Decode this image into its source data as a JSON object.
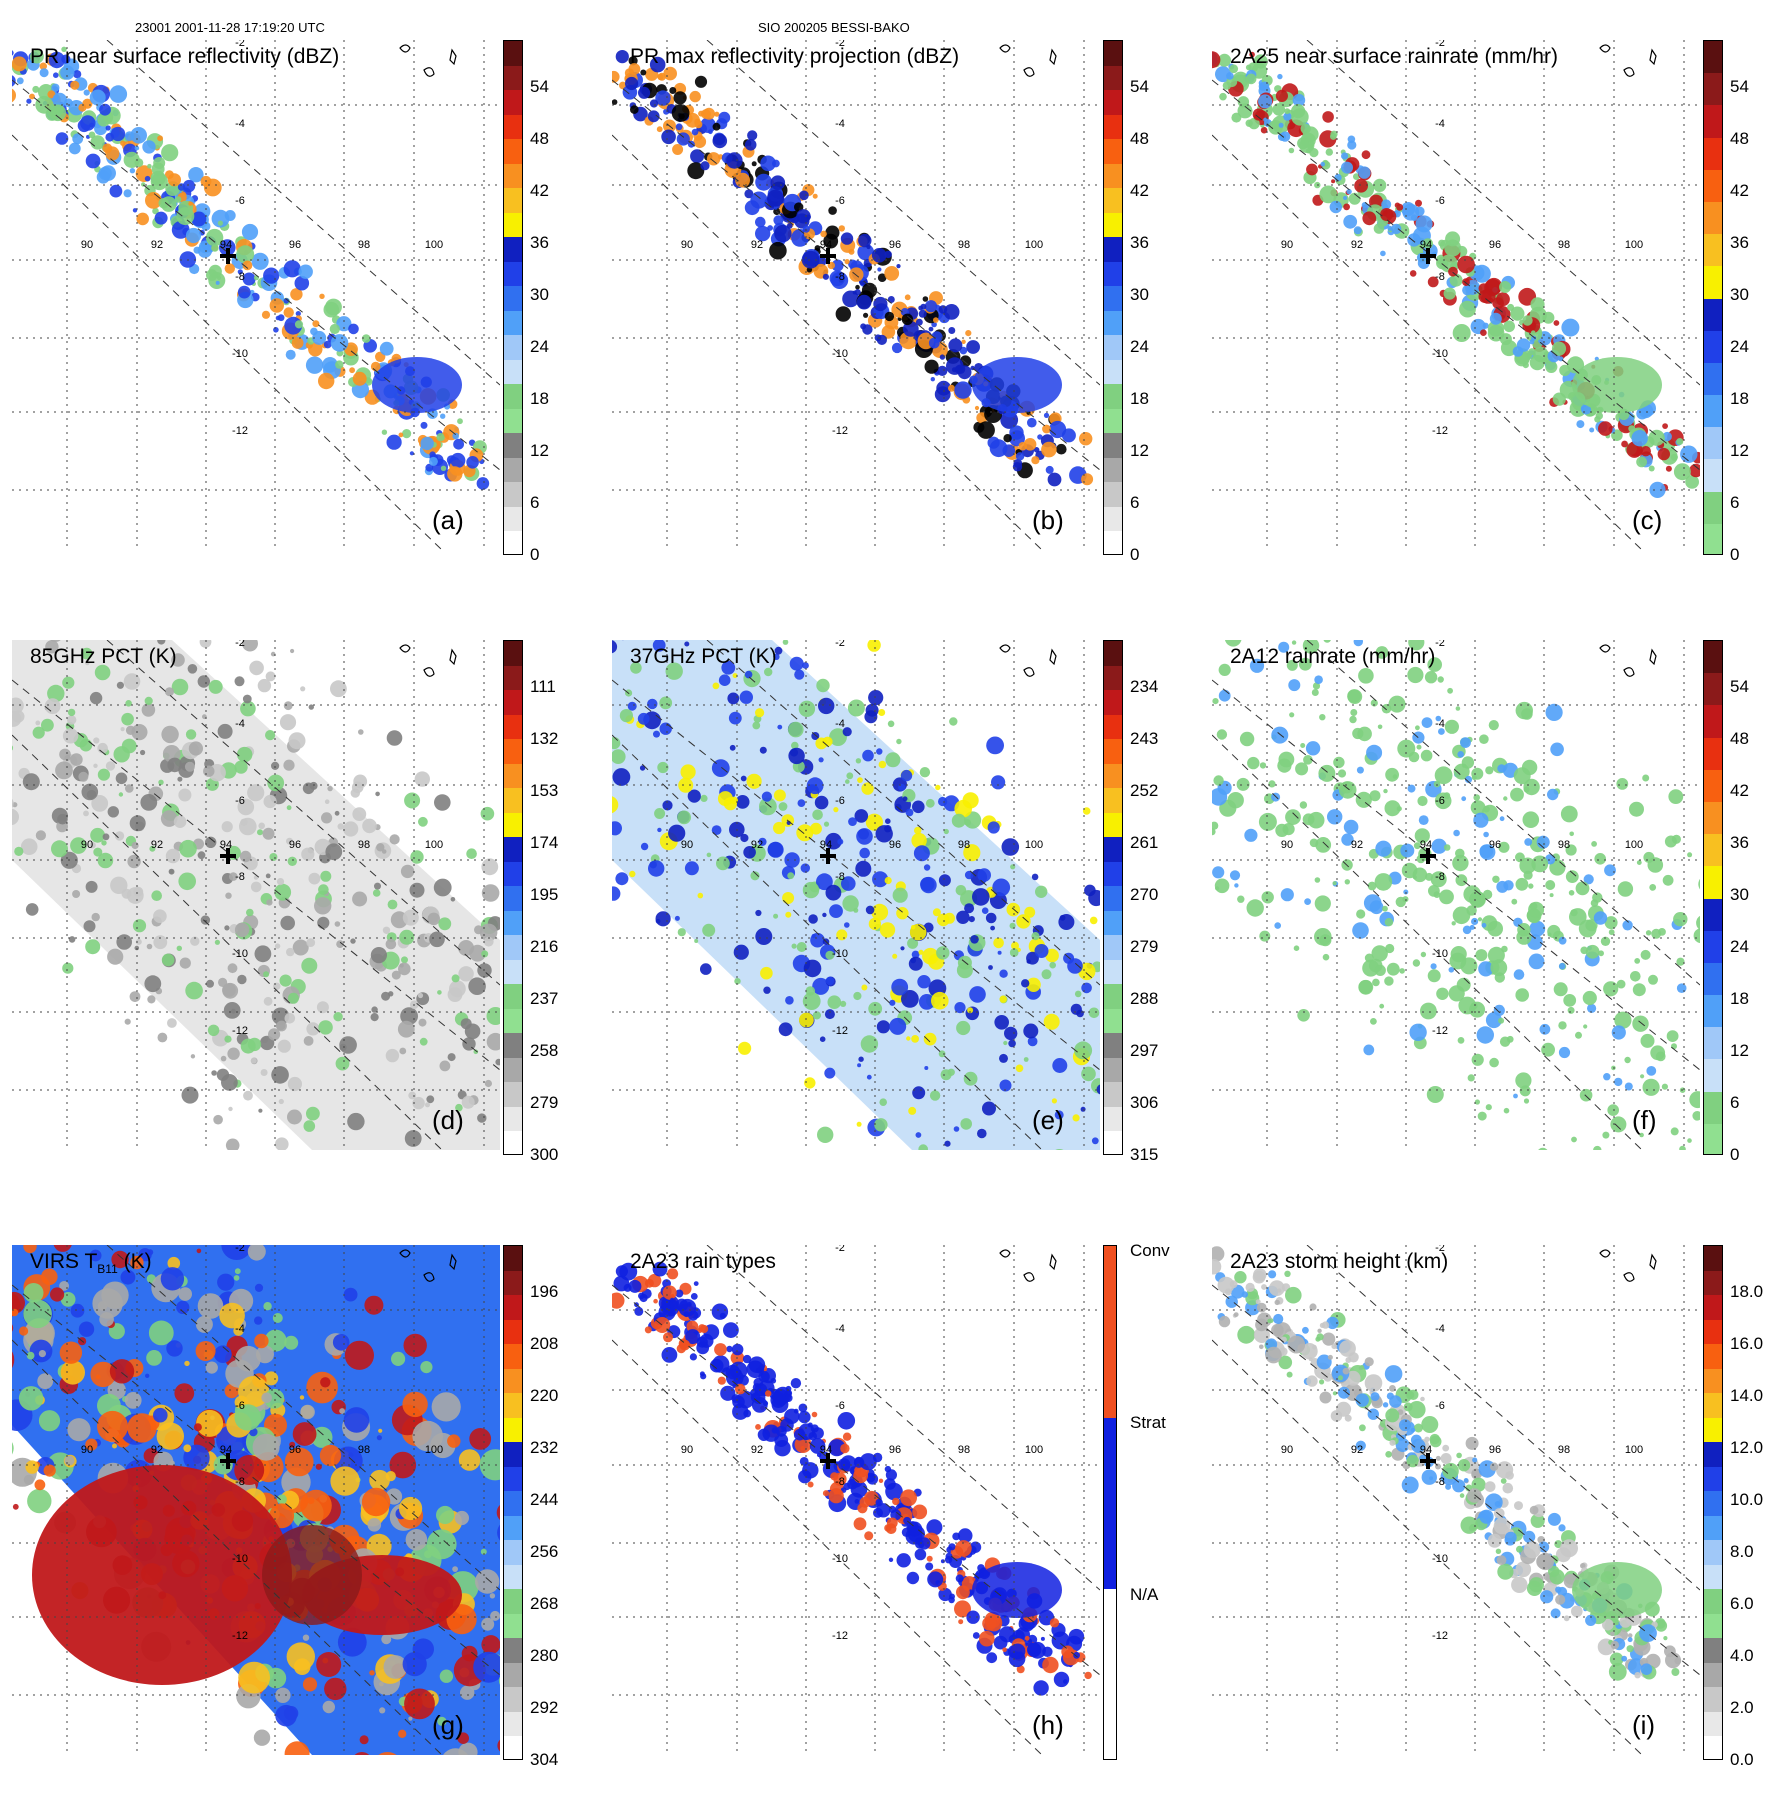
{
  "header": {
    "left": "23001 2001-11-28 17:19:20 UTC",
    "center": "SIO 200205 BESSI-BAKO"
  },
  "map": {
    "lon_labels": [
      "90",
      "92",
      "94",
      "96",
      "98",
      "100"
    ],
    "lat_labels": [
      "-2",
      "-4",
      "-6",
      "-8",
      "-10",
      "-12"
    ]
  },
  "panels": [
    {
      "id": "a",
      "title": "PR near surface reflectivity (dBZ)",
      "label": "(a)",
      "ticks": [
        "54",
        "48",
        "42",
        "36",
        "30",
        "24",
        "18",
        "12",
        "6",
        "0"
      ],
      "colors": [
        "#5a1010",
        "#8b1a1a",
        "#c0181a",
        "#e83010",
        "#f86010",
        "#f89020",
        "#f8c020",
        "#f8f000",
        "#1020c0",
        "#2040e8",
        "#3070f0",
        "#50a0f8",
        "#a0c8f8",
        "#c8e0f8",
        "#80d080",
        "#90e090",
        "#808080",
        "#a8a8a8",
        "#c8c8c8",
        "#e8e8e8",
        "#ffffff"
      ]
    },
    {
      "id": "b",
      "title": "PR max reflectivity projection (dBZ)",
      "label": "(b)",
      "ticks": [
        "54",
        "48",
        "42",
        "36",
        "30",
        "24",
        "18",
        "12",
        "6",
        "0"
      ],
      "colors": [
        "#5a1010",
        "#8b1a1a",
        "#c0181a",
        "#e83010",
        "#f86010",
        "#f89020",
        "#f8c020",
        "#f8f000",
        "#1020c0",
        "#2040e8",
        "#3070f0",
        "#50a0f8",
        "#a0c8f8",
        "#c8e0f8",
        "#80d080",
        "#90e090",
        "#808080",
        "#a8a8a8",
        "#c8c8c8",
        "#e8e8e8",
        "#ffffff"
      ]
    },
    {
      "id": "c",
      "title": "2A25 near surface rainrate (mm/hr)",
      "label": "(c)",
      "ticks": [
        "54",
        "48",
        "42",
        "36",
        "30",
        "24",
        "18",
        "12",
        "6",
        "0"
      ],
      "colors": [
        "#5a1010",
        "#8b1a1a",
        "#c0181a",
        "#e83010",
        "#f86010",
        "#f89020",
        "#f8c020",
        "#f8f000",
        "#1020c0",
        "#2040e8",
        "#3070f0",
        "#50a0f8",
        "#a0c8f8",
        "#c8e0f8",
        "#80d080",
        "#90e090"
      ]
    },
    {
      "id": "d",
      "title": "85GHz PCT (K)",
      "label": "(d)",
      "ticks": [
        "111",
        "132",
        "153",
        "174",
        "195",
        "216",
        "237",
        "258",
        "279",
        "300"
      ],
      "colors": [
        "#5a1010",
        "#8b1a1a",
        "#c0181a",
        "#e83010",
        "#f86010",
        "#f89020",
        "#f8c020",
        "#f8f000",
        "#1020c0",
        "#2040e8",
        "#3070f0",
        "#50a0f8",
        "#a0c8f8",
        "#c8e0f8",
        "#80d080",
        "#90e090",
        "#808080",
        "#a8a8a8",
        "#c8c8c8",
        "#e8e8e8",
        "#ffffff"
      ]
    },
    {
      "id": "e",
      "title": "37GHz PCT (K)",
      "label": "(e)",
      "ticks": [
        "234",
        "243",
        "252",
        "261",
        "270",
        "279",
        "288",
        "297",
        "306",
        "315"
      ],
      "colors": [
        "#5a1010",
        "#8b1a1a",
        "#c0181a",
        "#e83010",
        "#f86010",
        "#f89020",
        "#f8c020",
        "#f8f000",
        "#1020c0",
        "#2040e8",
        "#3070f0",
        "#50a0f8",
        "#a0c8f8",
        "#c8e0f8",
        "#80d080",
        "#90e090",
        "#808080",
        "#a8a8a8",
        "#c8c8c8",
        "#e8e8e8",
        "#ffffff"
      ]
    },
    {
      "id": "f",
      "title": "2A12 rainrate (mm/hr)",
      "label": "(f)",
      "ticks": [
        "54",
        "48",
        "42",
        "36",
        "30",
        "24",
        "18",
        "12",
        "6",
        "0"
      ],
      "colors": [
        "#5a1010",
        "#8b1a1a",
        "#c0181a",
        "#e83010",
        "#f86010",
        "#f89020",
        "#f8c020",
        "#f8f000",
        "#1020c0",
        "#2040e8",
        "#3070f0",
        "#50a0f8",
        "#a0c8f8",
        "#c8e0f8",
        "#80d080",
        "#90e090"
      ]
    },
    {
      "id": "g",
      "title": "VIRS T",
      "title_sub": "B11",
      "title_tail": "(K)",
      "label": "(g)",
      "ticks": [
        "196",
        "208",
        "220",
        "232",
        "244",
        "256",
        "268",
        "280",
        "292",
        "304"
      ],
      "colors": [
        "#5a1010",
        "#8b1a1a",
        "#c0181a",
        "#e83010",
        "#f86010",
        "#f89020",
        "#f8c020",
        "#f8f000",
        "#1020c0",
        "#2040e8",
        "#3070f0",
        "#50a0f8",
        "#a0c8f8",
        "#c8e0f8",
        "#80d080",
        "#90e090",
        "#808080",
        "#a8a8a8",
        "#c8c8c8",
        "#e8e8e8",
        "#ffffff"
      ]
    },
    {
      "id": "h",
      "title": "2A23 rain types",
      "label": "(h)",
      "ticks": [
        "Conv",
        "Strat",
        "N/A"
      ],
      "colors": [
        "#f05020",
        "#1020e0",
        "#ffffff"
      ]
    },
    {
      "id": "i",
      "title": "2A23 storm height (km)",
      "label": "(i)",
      "ticks": [
        "18.0",
        "16.0",
        "14.0",
        "12.0",
        "10.0",
        "8.0",
        "6.0",
        "4.0",
        "2.0",
        "0.0"
      ],
      "colors": [
        "#5a1010",
        "#8b1a1a",
        "#c0181a",
        "#e83010",
        "#f86010",
        "#f89020",
        "#f8c020",
        "#f8f000",
        "#1020c0",
        "#2040e8",
        "#3070f0",
        "#50a0f8",
        "#a0c8f8",
        "#c8e0f8",
        "#80d080",
        "#90e090",
        "#808080",
        "#a8a8a8",
        "#c8c8c8",
        "#e8e8e8",
        "#ffffff"
      ]
    }
  ],
  "style": {
    "conv_color": "#f05020",
    "strat_color": "#1020e0",
    "green": "#80d080",
    "blue": "#2040e8",
    "red": "#c0181a",
    "orange": "#f89020",
    "gray": "#b0b0b0"
  }
}
